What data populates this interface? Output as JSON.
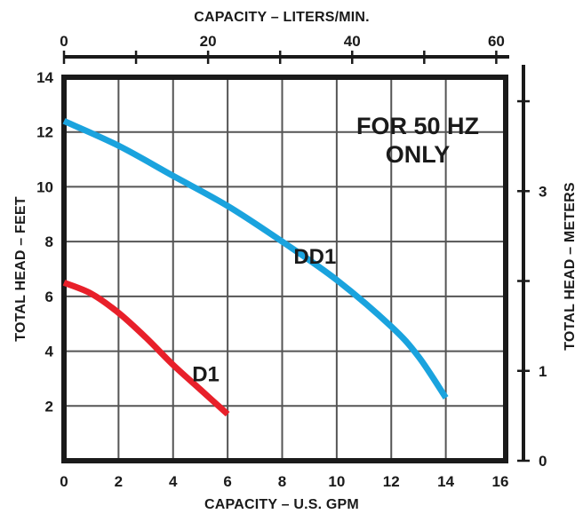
{
  "chart_data": {
    "type": "line",
    "title": "",
    "annotation": [
      "FOR 50 HZ",
      "ONLY"
    ],
    "xlabel": "CAPACITY – U.S. GPM",
    "ylabel": "TOTAL HEAD – FEET",
    "x2label": "CAPACITY – LITERS/MIN.",
    "y2label": "TOTAL HEAD – METERS",
    "xlim": [
      0,
      16
    ],
    "ylim": [
      0,
      14
    ],
    "x_ticks": [
      "0",
      "2",
      "4",
      "6",
      "8",
      "10",
      "12",
      "14",
      "16"
    ],
    "y_ticks": [
      "2",
      "4",
      "6",
      "8",
      "10",
      "12",
      "14"
    ],
    "x2_ticks": [
      "0",
      "20",
      "40",
      "60"
    ],
    "y2_ticks": [
      "0",
      "1",
      "3"
    ],
    "grid": true,
    "series": [
      {
        "name": "DD1",
        "color": "#1AA3DE",
        "x": [
          0,
          2,
          4,
          6,
          8,
          10,
          12,
          13,
          14
        ],
        "y": [
          12.4,
          11.5,
          10.4,
          9.3,
          8.0,
          6.6,
          4.9,
          3.8,
          2.3
        ]
      },
      {
        "name": "D1",
        "color": "#E8202A",
        "x": [
          0,
          1,
          2,
          3,
          4,
          5,
          6
        ],
        "y": [
          6.5,
          6.1,
          5.4,
          4.5,
          3.5,
          2.6,
          1.7
        ]
      }
    ]
  }
}
